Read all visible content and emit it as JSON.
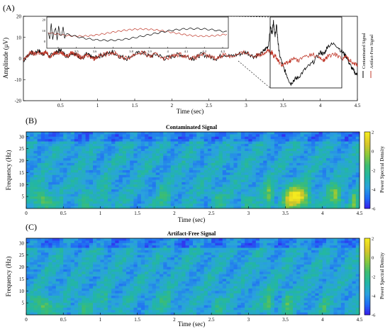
{
  "panel_labels": [
    "(A)",
    "(B)",
    "(C)"
  ],
  "colors": {
    "contaminated": "#000000",
    "artifact_free": "#c0392b",
    "inset_line_a": "#000000",
    "inset_line_b": "#c0392b",
    "colormap": [
      "#3b16ea",
      "#1f6bf5",
      "#2aa2de",
      "#22b6a6",
      "#3dbd72",
      "#8cc83a",
      "#d9c629",
      "#f4ea1e"
    ]
  },
  "chart_data": [
    {
      "type": "line",
      "panel": "(A)",
      "xlabel": "Time (sec)",
      "ylabel": "Amplitude (μV)",
      "xlim": [
        0,
        4.5
      ],
      "ylim": [
        -20,
        20
      ],
      "xticks": [
        "0.5",
        "1",
        "1.5",
        "2",
        "2.5",
        "3",
        "3.5",
        "4",
        "4.5"
      ],
      "yticks": [
        "20",
        "10",
        "0",
        "-10",
        "-20"
      ],
      "grid": false,
      "legend": "right-vertical",
      "series": [
        {
          "name": "Contaminated Signal",
          "x": [
            0,
            0.05,
            0.1,
            0.15,
            0.2,
            0.25,
            0.3,
            0.35,
            0.4,
            0.45,
            0.5,
            0.55,
            0.6,
            0.65,
            0.7,
            0.75,
            0.8,
            0.85,
            0.9,
            0.95,
            1.0,
            1.1,
            1.2,
            1.3,
            1.4,
            1.5,
            1.6,
            1.7,
            1.8,
            1.9,
            2.0,
            2.1,
            2.2,
            2.3,
            2.4,
            2.5,
            2.6,
            2.7,
            2.8,
            2.9,
            3.0,
            3.1,
            3.2,
            3.25,
            3.3,
            3.33,
            3.35,
            3.37,
            3.39,
            3.41,
            3.43,
            3.45,
            3.5,
            3.55,
            3.6,
            3.65,
            3.7,
            3.8,
            3.9,
            4.0,
            4.05,
            4.1,
            4.2,
            4.3,
            4.35,
            4.4,
            4.45,
            4.5
          ],
          "y": [
            -1,
            1,
            3,
            2,
            4,
            2,
            3,
            1,
            2,
            3,
            4,
            2,
            1,
            3,
            2,
            1,
            0,
            2,
            1,
            0,
            1,
            2,
            3,
            1,
            0,
            2,
            3,
            1,
            2,
            0,
            1,
            2,
            1,
            0,
            2,
            1,
            0,
            2,
            1,
            2,
            3,
            1,
            2,
            4,
            6,
            15,
            12,
            18,
            10,
            16,
            8,
            2,
            -4,
            -8,
            -12,
            -10,
            -9,
            -5,
            -2,
            3,
            2,
            6,
            7,
            3,
            1,
            -3,
            -6,
            -8
          ]
        },
        {
          "name": "Artifact-Free Signal",
          "x": [
            0,
            0.05,
            0.1,
            0.15,
            0.2,
            0.25,
            0.3,
            0.35,
            0.4,
            0.45,
            0.5,
            0.55,
            0.6,
            0.65,
            0.7,
            0.75,
            0.8,
            0.85,
            0.9,
            0.95,
            1.0,
            1.1,
            1.2,
            1.3,
            1.4,
            1.5,
            1.6,
            1.7,
            1.8,
            1.9,
            2.0,
            2.1,
            2.2,
            2.3,
            2.4,
            2.5,
            2.6,
            2.7,
            2.8,
            2.9,
            3.0,
            3.1,
            3.2,
            3.25,
            3.3,
            3.33,
            3.35,
            3.37,
            3.39,
            3.41,
            3.43,
            3.45,
            3.5,
            3.55,
            3.6,
            3.65,
            3.7,
            3.8,
            3.9,
            4.0,
            4.05,
            4.1,
            4.2,
            4.3,
            4.35,
            4.4,
            4.45,
            4.5
          ],
          "y": [
            -1,
            1,
            3,
            2,
            3,
            2,
            3,
            1,
            2,
            3,
            3,
            2,
            1,
            3,
            2,
            1,
            0,
            2,
            1,
            0,
            1,
            2,
            3,
            1,
            0,
            2,
            3,
            1,
            2,
            0,
            1,
            2,
            1,
            0,
            2,
            1,
            0,
            2,
            1,
            2,
            3,
            1,
            2,
            3,
            4,
            2,
            3,
            1,
            2,
            0,
            -1,
            -2,
            -3,
            -2,
            -1,
            0,
            -1,
            1,
            2,
            0,
            -1,
            1,
            2,
            0,
            1,
            -1,
            -2,
            -3
          ]
        }
      ]
    },
    {
      "type": "heatmap",
      "panel": "(B)",
      "title": "Contaminated Signal",
      "xlabel": "Time (sec)",
      "ylabel": "Frequency (Hz)",
      "colorbar_label": "Power Spectral Density",
      "xlim": [
        0,
        4.5
      ],
      "ylim": [
        0,
        32
      ],
      "xticks": [
        "0",
        "0.5",
        "1",
        "1.5",
        "2",
        "2.5",
        "3",
        "3.5",
        "4",
        "4.5"
      ],
      "yticks": [
        "30",
        "25",
        "20",
        "15",
        "10",
        "5"
      ],
      "colorbar_ticks": [
        "2",
        "0",
        "-2",
        "-4",
        "-6"
      ],
      "clim": [
        -6,
        2
      ]
    },
    {
      "type": "heatmap",
      "panel": "(C)",
      "title": "Artifact-Free Signal",
      "xlabel": "Time (sec)",
      "ylabel": "Frequency (Hz)",
      "colorbar_label": "Power Spectral Density",
      "xlim": [
        0,
        4.5
      ],
      "ylim": [
        0,
        32
      ],
      "xticks": [
        "0",
        "0.5",
        "1",
        "1.5",
        "2",
        "2.5",
        "3",
        "3.5",
        "4",
        "4.5"
      ],
      "yticks": [
        "30",
        "25",
        "20",
        "15",
        "10",
        "5"
      ],
      "colorbar_ticks": [
        "2",
        "0",
        "-2",
        "-4",
        "-6"
      ],
      "clim": [
        -6,
        2
      ]
    }
  ],
  "inset": {
    "xticks": [
      "3.4",
      "3.5",
      "3.6",
      "3.7",
      "3.8",
      "3.9",
      "4",
      "4.1",
      "4.2",
      "4.3"
    ],
    "yticks": [
      "20",
      "10",
      "0"
    ]
  }
}
